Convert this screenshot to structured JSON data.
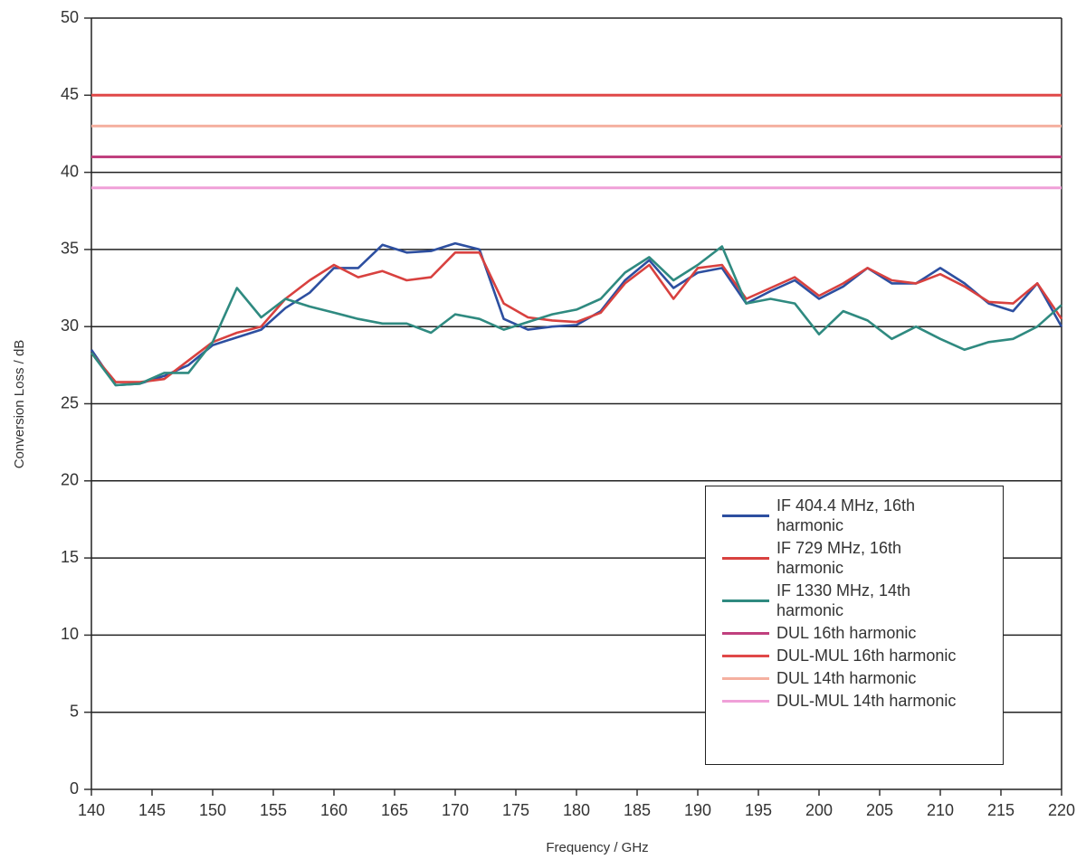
{
  "chart_data": {
    "type": "line",
    "xlabel": "Frequency / GHz",
    "ylabel": "Conversion Loss / dB",
    "xlim": [
      140,
      220
    ],
    "ylim": [
      0,
      50
    ],
    "xticks": [
      140,
      145,
      150,
      155,
      160,
      165,
      170,
      175,
      180,
      185,
      190,
      195,
      200,
      205,
      210,
      215,
      220
    ],
    "yticks": [
      0,
      5,
      10,
      15,
      20,
      25,
      30,
      35,
      40,
      45,
      50
    ],
    "grid": true,
    "legend": "lower right",
    "x": [
      140,
      142,
      144,
      146,
      148,
      150,
      152,
      154,
      156,
      158,
      160,
      162,
      164,
      166,
      168,
      170,
      172,
      174,
      176,
      178,
      180,
      182,
      184,
      186,
      188,
      190,
      192,
      194,
      196,
      198,
      200,
      202,
      204,
      206,
      208,
      210,
      212,
      214,
      216,
      218,
      220
    ],
    "series": [
      {
        "name": "IF 404.4 MHz, 16th harmonic",
        "color": "#2d4fa0",
        "values": [
          28.5,
          26.2,
          26.3,
          26.8,
          27.5,
          28.8,
          29.3,
          29.8,
          31.2,
          32.2,
          33.8,
          33.8,
          35.3,
          34.8,
          34.9,
          35.4,
          35.0,
          30.5,
          29.8,
          30.0,
          30.1,
          31.0,
          33.0,
          34.3,
          32.5,
          33.5,
          33.8,
          31.5,
          32.3,
          33.0,
          31.8,
          32.6,
          33.8,
          32.8,
          32.8,
          33.8,
          32.8,
          31.5,
          31.0,
          32.8,
          30.0
        ]
      },
      {
        "name": "IF 729 MHz, 16th harmonic",
        "color": "#d8413f",
        "values": [
          28.3,
          26.4,
          26.4,
          26.6,
          27.8,
          29.0,
          29.6,
          30.0,
          31.8,
          33.0,
          34.0,
          33.2,
          33.6,
          33.0,
          33.2,
          34.8,
          34.8,
          31.5,
          30.6,
          30.4,
          30.3,
          30.9,
          32.8,
          34.0,
          31.8,
          33.8,
          34.0,
          31.8,
          32.5,
          33.2,
          32.0,
          32.8,
          33.8,
          33.0,
          32.8,
          33.4,
          32.6,
          31.6,
          31.5,
          32.8,
          30.5
        ]
      },
      {
        "name": "IF 1330 MHz, 14th harmonic",
        "color": "#2f8a80",
        "values": [
          28.3,
          26.2,
          26.3,
          27.0,
          27.0,
          29.0,
          32.5,
          30.6,
          31.8,
          31.3,
          30.9,
          30.5,
          30.2,
          30.2,
          29.6,
          30.8,
          30.5,
          29.8,
          30.3,
          30.8,
          31.1,
          31.8,
          33.5,
          34.5,
          33.0,
          34.0,
          35.2,
          31.5,
          31.8,
          31.5,
          29.5,
          31.0,
          30.4,
          29.2,
          30.0,
          29.2,
          28.5,
          29.0,
          29.2,
          30.0,
          31.4
        ]
      },
      {
        "name": "DUL 16th harmonic",
        "color": "#c0407e",
        "x": [
          140,
          220
        ],
        "values": [
          41,
          41
        ]
      },
      {
        "name": "DUL-MUL 16th harmonic",
        "color": "#e04848",
        "x": [
          140,
          220
        ],
        "values": [
          45,
          45
        ]
      },
      {
        "name": "DUL 14th harmonic",
        "color": "#f5b0a0",
        "x": [
          140,
          220
        ],
        "values": [
          43,
          43
        ]
      },
      {
        "name": "DUL-MUL 14th harmonic",
        "color": "#f0a0d8",
        "x": [
          140,
          220
        ],
        "values": [
          39,
          39
        ]
      }
    ]
  }
}
